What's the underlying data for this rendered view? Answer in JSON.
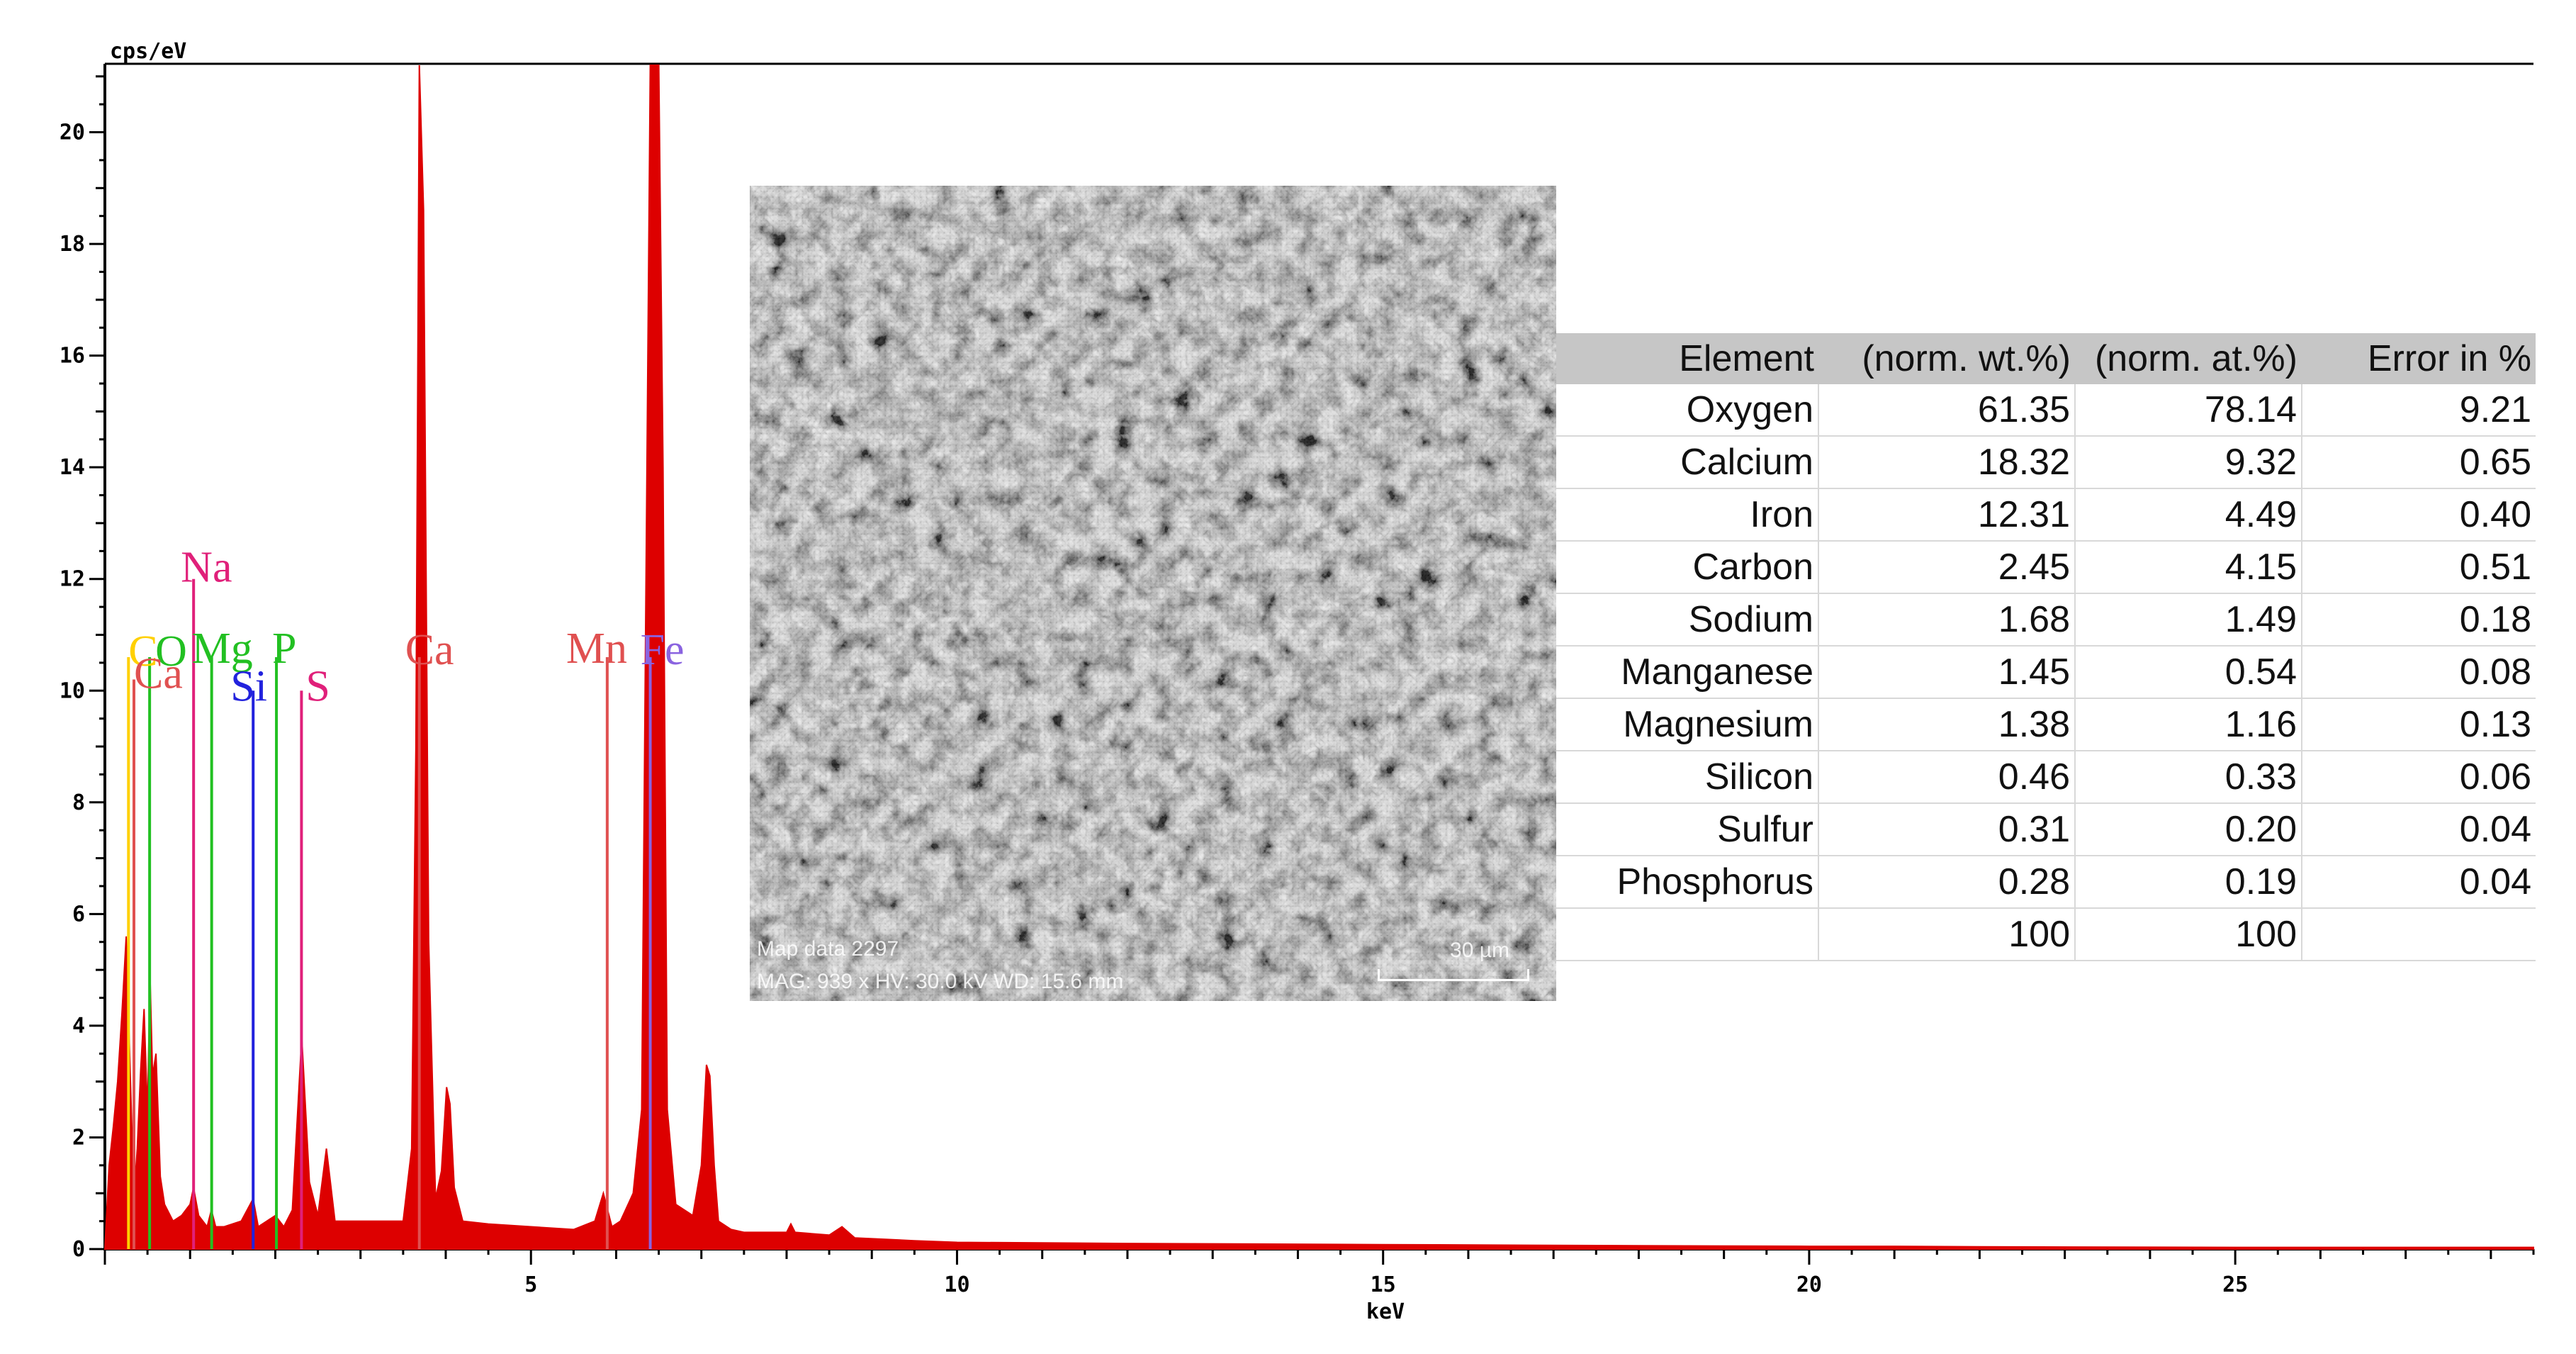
{
  "chart_data": {
    "type": "area",
    "ylabel": "cps/eV",
    "xlabel": "keV",
    "xlim": [
      0,
      28.5
    ],
    "ylim": [
      0,
      21.2
    ],
    "xticks": [
      5,
      10,
      15,
      20,
      25
    ],
    "yticks": [
      0,
      2,
      4,
      6,
      8,
      10,
      12,
      14,
      16,
      18,
      20
    ],
    "grid": false,
    "series_color": "#dd0000",
    "spectrum": {
      "x": [
        0.0,
        0.05,
        0.1,
        0.15,
        0.2,
        0.25,
        0.3,
        0.34,
        0.38,
        0.42,
        0.46,
        0.5,
        0.53,
        0.56,
        0.6,
        0.65,
        0.7,
        0.8,
        0.9,
        1.0,
        1.04,
        1.1,
        1.2,
        1.25,
        1.3,
        1.4,
        1.6,
        1.74,
        1.8,
        1.9,
        2.0,
        2.1,
        2.2,
        2.31,
        2.4,
        2.5,
        2.6,
        2.7,
        2.9,
        3.2,
        3.5,
        3.6,
        3.65,
        3.69,
        3.74,
        3.8,
        3.88,
        3.95,
        4.01,
        4.05,
        4.1,
        4.2,
        4.5,
        5.0,
        5.5,
        5.75,
        5.85,
        5.9,
        5.95,
        6.05,
        6.2,
        6.3,
        6.35,
        6.4,
        6.45,
        6.5,
        6.55,
        6.6,
        6.7,
        6.9,
        7.0,
        7.06,
        7.1,
        7.15,
        7.2,
        7.35,
        7.5,
        8.0,
        8.05,
        8.1,
        8.5,
        8.65,
        8.8,
        9.5,
        10.0,
        12.0,
        15.0,
        18.0,
        20.0,
        21.0,
        22.0,
        25.0,
        28.5
      ],
      "y": [
        0.0,
        1.5,
        2.2,
        3.0,
        4.2,
        5.6,
        3.0,
        0.9,
        1.8,
        3.2,
        4.3,
        2.4,
        4.9,
        3.1,
        3.5,
        1.3,
        0.8,
        0.5,
        0.6,
        0.8,
        1.1,
        0.6,
        0.4,
        0.7,
        0.4,
        0.4,
        0.5,
        0.9,
        0.4,
        0.5,
        0.6,
        0.4,
        0.7,
        3.8,
        1.2,
        0.6,
        1.8,
        0.5,
        0.5,
        0.5,
        0.5,
        1.8,
        9.0,
        21.2,
        18.6,
        5.5,
        0.9,
        1.4,
        2.9,
        2.6,
        1.1,
        0.5,
        0.45,
        0.4,
        0.35,
        0.5,
        1.0,
        0.7,
        0.4,
        0.5,
        1.0,
        2.5,
        12.0,
        21.2,
        21.2,
        21.2,
        14.0,
        2.5,
        0.8,
        0.6,
        1.5,
        3.3,
        3.1,
        1.5,
        0.5,
        0.35,
        0.3,
        0.3,
        0.45,
        0.3,
        0.25,
        0.4,
        0.2,
        0.15,
        0.12,
        0.1,
        0.08,
        0.06,
        0.05,
        0.05,
        0.04,
        0.03,
        0.03
      ]
    },
    "element_lines": [
      {
        "label": "C",
        "kev": 0.277,
        "height": 10.6,
        "color": "#ffd000"
      },
      {
        "label": "O",
        "kev": 0.525,
        "height": 10.6,
        "color": "#22c022"
      },
      {
        "label": "Ca",
        "kev": 0.341,
        "height": 10.2,
        "color": "#e05050"
      },
      {
        "label": "Na",
        "kev": 1.041,
        "height": 12.0,
        "color": "#e0207a"
      },
      {
        "label": "Mg",
        "kev": 1.253,
        "height": 10.6,
        "color": "#22c022"
      },
      {
        "label": "Si",
        "kev": 1.74,
        "height": 10.0,
        "color": "#2222dd"
      },
      {
        "label": "P",
        "kev": 2.013,
        "height": 10.6,
        "color": "#22c022"
      },
      {
        "label": "S",
        "kev": 2.307,
        "height": 10.0,
        "color": "#e0207a"
      },
      {
        "label": "Ca",
        "kev": 3.69,
        "height": 10.6,
        "color": "#e05050"
      },
      {
        "label": "Mn",
        "kev": 5.895,
        "height": 10.6,
        "color": "#e05050"
      },
      {
        "label": "Fe",
        "kev": 6.4,
        "height": 10.6,
        "color": "#8a63e0"
      }
    ]
  },
  "sem_image": {
    "caption_line1": "Map data 2297",
    "caption_line2": "MAG: 939 x   HV: 30.0 kV   WD: 15.6 mm",
    "scale_label": "30 µm"
  },
  "composition_table": {
    "headers": [
      "Element",
      "(norm. wt.%)",
      "(norm. at.%)",
      "Error in %"
    ],
    "rows": [
      [
        "Oxygen",
        "61.35",
        "78.14",
        "9.21"
      ],
      [
        "Calcium",
        "18.32",
        "9.32",
        "0.65"
      ],
      [
        "Iron",
        "12.31",
        "4.49",
        "0.40"
      ],
      [
        "Carbon",
        "2.45",
        "4.15",
        "0.51"
      ],
      [
        "Sodium",
        "1.68",
        "1.49",
        "0.18"
      ],
      [
        "Manganese",
        "1.45",
        "0.54",
        "0.08"
      ],
      [
        "Magnesium",
        "1.38",
        "1.16",
        "0.13"
      ],
      [
        "Silicon",
        "0.46",
        "0.33",
        "0.06"
      ],
      [
        "Sulfur",
        "0.31",
        "0.20",
        "0.04"
      ],
      [
        "Phosphorus",
        "0.28",
        "0.19",
        "0.04"
      ]
    ],
    "totals": [
      "",
      "100",
      "100",
      ""
    ]
  }
}
